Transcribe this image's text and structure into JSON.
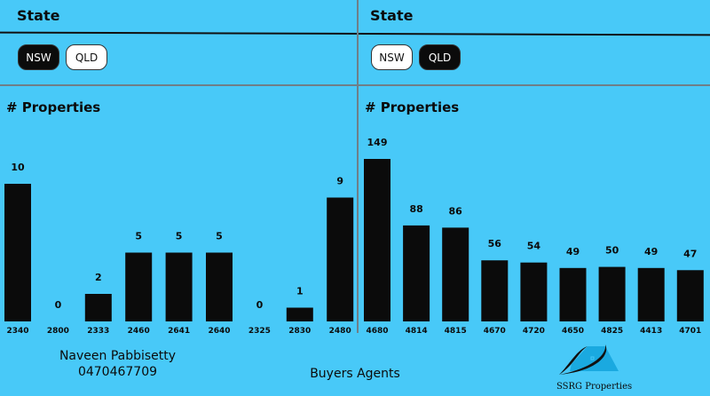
{
  "left": {
    "filter_title": "State",
    "options": [
      "NSW",
      "QLD"
    ],
    "selected": "NSW"
  },
  "right": {
    "filter_title": "State",
    "options": [
      "NSW",
      "QLD"
    ],
    "selected": "QLD"
  },
  "chart_data": [
    {
      "type": "bar",
      "title": "# Properties",
      "categories": [
        "2340",
        "2800",
        "2333",
        "2460",
        "2641",
        "2640",
        "2325",
        "2830",
        "2480"
      ],
      "values": [
        10,
        0,
        2,
        5,
        5,
        5,
        0,
        1,
        9
      ],
      "ylim": [
        0,
        10
      ]
    },
    {
      "type": "bar",
      "title": "# Properties",
      "categories": [
        "4680",
        "4814",
        "4815",
        "4670",
        "4720",
        "4650",
        "4825",
        "4413",
        "4701"
      ],
      "values": [
        149,
        88,
        86,
        56,
        54,
        49,
        50,
        49,
        47
      ],
      "ylim": [
        0,
        149
      ]
    }
  ],
  "footer": {
    "name": "Naveen Pabbisetty",
    "phone": "0470467709",
    "tagline": "Buyers Agents",
    "logo_text": "SSRG Properties"
  },
  "colors": {
    "background": "#48c9f8",
    "bar": "#0b0b0b"
  }
}
